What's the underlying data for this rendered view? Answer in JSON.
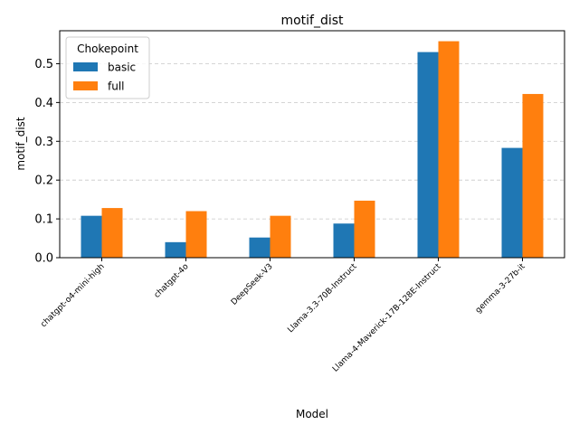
{
  "chart_data": {
    "type": "bar",
    "title": "motif_dist",
    "xlabel": "Model",
    "ylabel": "motif_dist",
    "ylim": [
      0,
      0.585
    ],
    "yticks": [
      0.0,
      0.1,
      0.2,
      0.3,
      0.4,
      0.5
    ],
    "ytick_labels": [
      "0.0",
      "0.1",
      "0.2",
      "0.3",
      "0.4",
      "0.5"
    ],
    "grid": "y-dashed",
    "legend": {
      "title": "Chokepoint",
      "placement": "top-left"
    },
    "categories": [
      "chatgpt-o4-mini-high",
      "chatgpt-4o",
      "DeepSeek-V3",
      "Llama-3.3-70B-Instruct",
      "Llama-4-Maverick-17B-128E-Instruct",
      "gemma-3-27b-it"
    ],
    "series": [
      {
        "name": "basic",
        "color": "#1f77b4",
        "values": [
          0.108,
          0.04,
          0.052,
          0.088,
          0.53,
          0.283
        ]
      },
      {
        "name": "full",
        "color": "#ff7f0e",
        "values": [
          0.128,
          0.12,
          0.108,
          0.147,
          0.558,
          0.422
        ]
      }
    ]
  }
}
